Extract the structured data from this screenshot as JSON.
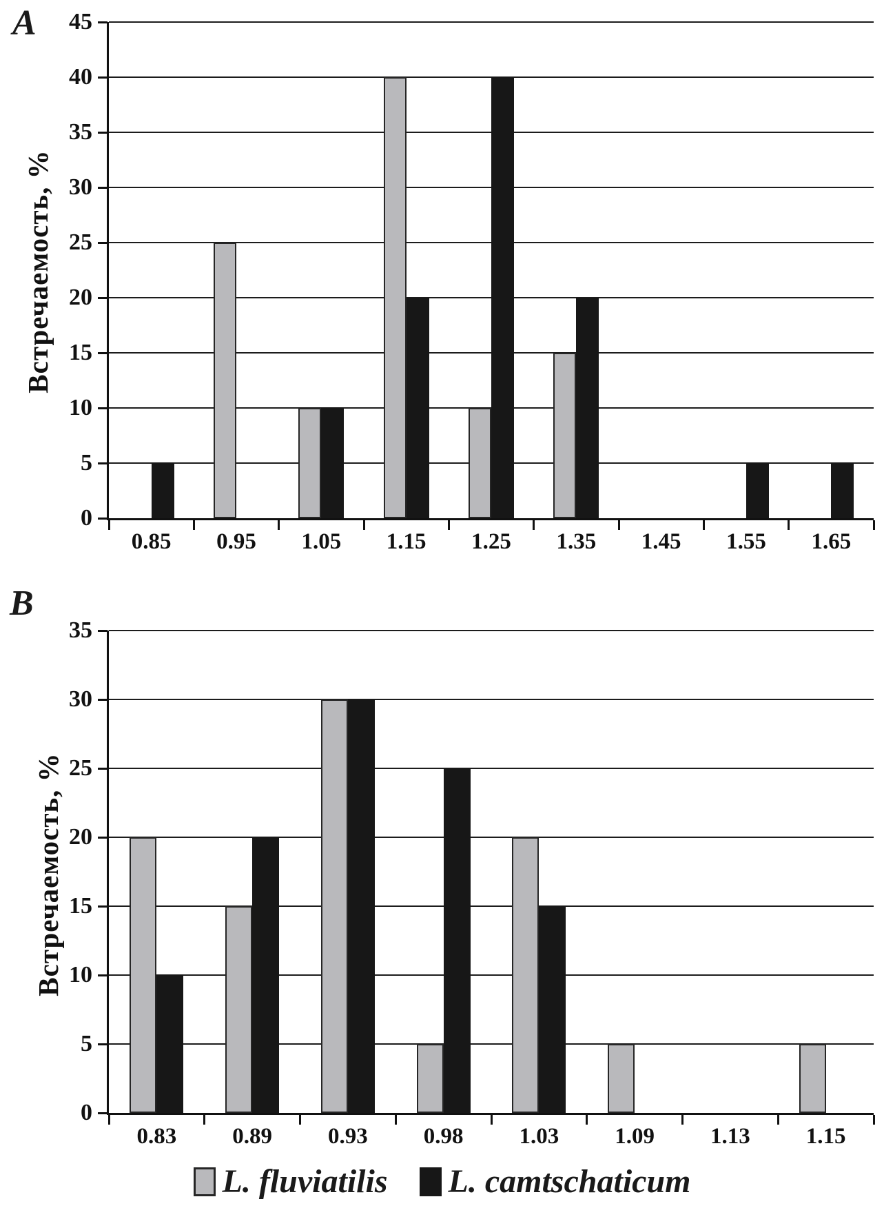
{
  "figure": {
    "background": "#ffffff",
    "panel_a_label": "A",
    "panel_b_label": "B",
    "legend": {
      "position": "bottom-center",
      "items": [
        {
          "label": "L. fluviatilis",
          "color": "#b9b9bc",
          "border": "#262626"
        },
        {
          "label": "L. camtschaticum",
          "color": "#171717",
          "border": "#171717"
        }
      ]
    }
  },
  "chart_data": [
    {
      "id": "A",
      "panel_label": "A",
      "type": "bar",
      "title": "",
      "xlabel": "",
      "ylabel": "Встречаемость, %",
      "categories": [
        "0.85",
        "0.95",
        "1.05",
        "1.15",
        "1.25",
        "1.35",
        "1.45",
        "1.55",
        "1.65"
      ],
      "series": [
        {
          "name": "L. fluviatilis",
          "color": "#b9b9bc",
          "values": [
            0,
            25,
            10,
            40,
            10,
            15,
            0,
            0,
            0
          ]
        },
        {
          "name": "L. camtschaticum",
          "color": "#171717",
          "values": [
            5,
            0,
            10,
            20,
            40,
            20,
            0,
            5,
            5
          ]
        }
      ],
      "ylim": [
        0,
        45
      ],
      "yticks": [
        0,
        5,
        10,
        15,
        20,
        25,
        30,
        35,
        40,
        45
      ],
      "grid": true,
      "legend_position": "shared-bottom"
    },
    {
      "id": "B",
      "panel_label": "B",
      "type": "bar",
      "title": "",
      "xlabel": "",
      "ylabel": "Встречаемость, %",
      "categories": [
        "0.83",
        "0.89",
        "0.93",
        "0.98",
        "1.03",
        "1.09",
        "1.13",
        "1.15"
      ],
      "series": [
        {
          "name": "L. fluviatilis",
          "color": "#b9b9bc",
          "values": [
            20,
            15,
            30,
            5,
            20,
            5,
            0,
            5
          ]
        },
        {
          "name": "L. camtschaticum",
          "color": "#171717",
          "values": [
            10,
            20,
            30,
            25,
            15,
            0,
            0,
            0
          ]
        }
      ],
      "ylim": [
        0,
        35
      ],
      "yticks": [
        0,
        5,
        10,
        15,
        20,
        25,
        30,
        35
      ],
      "grid": true,
      "legend_position": "shared-bottom"
    }
  ]
}
